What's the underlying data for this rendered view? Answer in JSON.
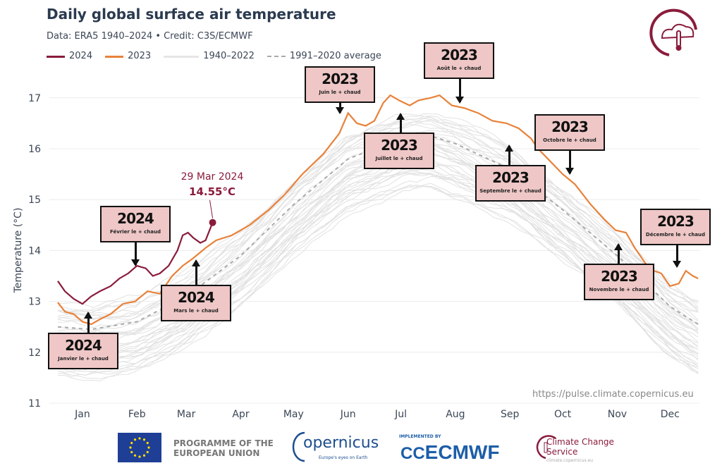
{
  "header": {
    "title": "Daily global surface air temperature",
    "subtitle": "Data: ERA5 1940–2024  •  Credit: C3S/ECMWF"
  },
  "legend": [
    {
      "label": "2024",
      "color": "#8a1c3b",
      "style": "solid"
    },
    {
      "label": "2023",
      "color": "#e8823a",
      "style": "solid"
    },
    {
      "label": "1940–2022",
      "color": "#e2e2e2",
      "style": "solid"
    },
    {
      "label": "1991–2020 average",
      "color": "#aaaaaa",
      "style": "dashed"
    }
  ],
  "chart_data": {
    "type": "line",
    "title": "Daily global surface air temperature",
    "ylabel": "Temperature (°C)",
    "ylim": [
      11,
      17.6
    ],
    "yticks": [
      11,
      12,
      13,
      14,
      15,
      16,
      17
    ],
    "xticks": [
      "Jan",
      "Feb",
      "Mar",
      "Apr",
      "May",
      "Jun",
      "Jul",
      "Aug",
      "Sep",
      "Oct",
      "Nov",
      "Dec"
    ],
    "x_unit": "day of year",
    "grid": "horizontal",
    "series": [
      {
        "name": "2024",
        "color": "#8a1c3b",
        "x": [
          1,
          5,
          10,
          15,
          20,
          25,
          31,
          36,
          41,
          46,
          51,
          55,
          59,
          64,
          69,
          72,
          75,
          78,
          82,
          85,
          89
        ],
        "y": [
          13.4,
          13.2,
          13.05,
          12.95,
          13.1,
          13.2,
          13.3,
          13.45,
          13.55,
          13.7,
          13.65,
          13.5,
          13.55,
          13.7,
          14.0,
          14.3,
          14.35,
          14.25,
          14.15,
          14.2,
          14.55
        ]
      },
      {
        "name": "2023",
        "color": "#e8823a",
        "x": [
          1,
          5,
          10,
          15,
          20,
          25,
          31,
          38,
          45,
          52,
          59,
          66,
          72,
          78,
          85,
          91,
          100,
          110,
          121,
          130,
          140,
          152,
          161,
          166,
          171,
          176,
          181,
          186,
          190,
          195,
          201,
          206,
          213,
          218,
          225,
          232,
          240,
          248,
          256,
          263,
          270,
          274,
          281,
          288,
          295,
          304,
          312,
          318,
          324,
          329,
          335,
          340,
          344,
          349,
          354,
          358,
          362,
          365
        ],
        "y": [
          12.98,
          12.8,
          12.75,
          12.6,
          12.55,
          12.65,
          12.75,
          12.95,
          13.0,
          13.2,
          13.15,
          13.5,
          13.7,
          13.85,
          14.05,
          14.2,
          14.3,
          14.5,
          14.8,
          15.1,
          15.5,
          15.9,
          16.3,
          16.7,
          16.5,
          16.45,
          16.55,
          16.9,
          17.05,
          16.95,
          16.85,
          16.95,
          17.0,
          17.05,
          16.85,
          16.8,
          16.7,
          16.55,
          16.5,
          16.4,
          16.2,
          16.0,
          15.75,
          15.5,
          15.3,
          14.9,
          14.6,
          14.4,
          14.35,
          14.05,
          13.75,
          13.6,
          13.55,
          13.3,
          13.35,
          13.6,
          13.5,
          13.45
        ]
      },
      {
        "name": "1991–2020 average",
        "color": "#aaaaaa",
        "x": [
          1,
          20,
          46,
          74,
          105,
          135,
          166,
          196,
          213,
          227,
          258,
          288,
          319,
          349,
          365
        ],
        "y": [
          12.5,
          12.45,
          12.6,
          13.1,
          13.9,
          14.9,
          15.8,
          16.2,
          16.25,
          16.1,
          15.6,
          14.8,
          13.9,
          12.9,
          12.55
        ]
      }
    ],
    "band": {
      "name": "1940–2022",
      "color": "#e2e2e2"
    },
    "callout": {
      "date": "29 Mar 2024",
      "value": "14.55°C",
      "day": 89,
      "temp": 14.55
    },
    "annotations": [
      {
        "year": "2024",
        "text": "Janvier le + chaud"
      },
      {
        "year": "2024",
        "text": "Février le + chaud"
      },
      {
        "year": "2024",
        "text": "Mars le + chaud"
      },
      {
        "year": "2023",
        "text": "Juin le + chaud"
      },
      {
        "year": "2023",
        "text": "Juillet le + chaud"
      },
      {
        "year": "2023",
        "text": "Août le + chaud"
      },
      {
        "year": "2023",
        "text": "Septembre le + chaud"
      },
      {
        "year": "2023",
        "text": "Octobre le + chaud"
      },
      {
        "year": "2023",
        "text": "Novembre le + chaud"
      },
      {
        "year": "2023",
        "text": "Décembre le + chaud"
      }
    ]
  },
  "source_url": "https://pulse.climate.copernicus.eu",
  "footer": {
    "eu": "PROGRAMME OF THE EUROPEAN UNION",
    "copernicus": "opernicus",
    "copernicus_tag": "Europe's eyes on Earth",
    "ecmwf_impl": "IMPLEMENTED BY",
    "ecmwf": "ECMWF",
    "c3s": "Climate Change Service",
    "c3s_url": "climate.copernicus.eu"
  }
}
